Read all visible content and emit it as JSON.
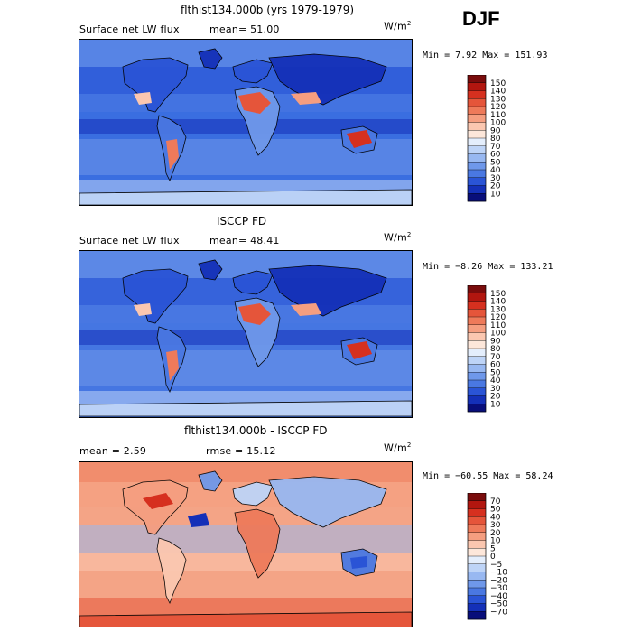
{
  "season": "DJF",
  "panels": [
    {
      "title": "flthist134.000b (yrs 1979-1979)",
      "left_label": "Surface net LW flux",
      "right_label": "mean=  51.00",
      "units": "W/m",
      "units_exp": "2",
      "minmax": "Min =    7.92 Max = 151.93",
      "ocean_color": "#3a6ee0",
      "cbar_labels": [
        "150",
        "140",
        "130",
        "120",
        "110",
        "100",
        "90",
        "80",
        "70",
        "60",
        "50",
        "40",
        "30",
        "20",
        "10"
      ],
      "cbar_colors": [
        "#7a0c0c",
        "#b2160f",
        "#d6301f",
        "#e5553a",
        "#ee7a5a",
        "#f59e80",
        "#fbc7b0",
        "#fde7da",
        "#e4eefc",
        "#bed4f7",
        "#98b8f1",
        "#6f98ea",
        "#4a78e2",
        "#2a54d6",
        "#1430b8",
        "#080e7a"
      ]
    },
    {
      "title": "ISCCP FD",
      "left_label": "Surface net LW flux",
      "right_label": "mean=  48.41",
      "units": "W/m",
      "units_exp": "2",
      "minmax": "Min =  −8.26 Max = 133.21",
      "ocean_color": "#4576e2",
      "cbar_labels": [
        "150",
        "140",
        "130",
        "120",
        "110",
        "100",
        "90",
        "80",
        "70",
        "60",
        "50",
        "40",
        "30",
        "20",
        "10"
      ],
      "cbar_colors": [
        "#7a0c0c",
        "#b2160f",
        "#d6301f",
        "#e5553a",
        "#ee7a5a",
        "#f59e80",
        "#fbc7b0",
        "#fde7da",
        "#e4eefc",
        "#bed4f7",
        "#98b8f1",
        "#6f98ea",
        "#4a78e2",
        "#2a54d6",
        "#1430b8",
        "#080e7a"
      ]
    },
    {
      "title": "flthist134.000b - ISCCP FD",
      "left_label": "mean =   2.59",
      "right_label": "rmse =  15.12",
      "units": "W/m",
      "units_exp": "2",
      "minmax": "Min = −60.55 Max =  58.24",
      "ocean_color": "#f4a486",
      "cbar_labels": [
        "70",
        "50",
        "40",
        "30",
        "20",
        "10",
        "5",
        "0",
        "−5",
        "−10",
        "−20",
        "−30",
        "−40",
        "−50",
        "−70"
      ],
      "cbar_colors": [
        "#7a0c0c",
        "#b2160f",
        "#d6301f",
        "#e5553a",
        "#ee7a5a",
        "#f59e80",
        "#fbc7b0",
        "#fde7da",
        "#e4eefc",
        "#bed4f7",
        "#98b8f1",
        "#6f98ea",
        "#4a78e2",
        "#2a54d6",
        "#1430b8",
        "#080e7a"
      ]
    }
  ],
  "chart_data": {
    "type": "heatmap",
    "title": "DJF",
    "maps": [
      {
        "title": "flthist134.000b (yrs 1979-1979)",
        "variable": "Surface net LW flux",
        "mean": 51.0,
        "min": 7.92,
        "max": 151.93,
        "units": "W/m2",
        "levels": [
          10,
          20,
          30,
          40,
          50,
          60,
          70,
          80,
          90,
          100,
          110,
          120,
          130,
          140,
          150
        ]
      },
      {
        "title": "ISCCP FD",
        "variable": "Surface net LW flux",
        "mean": 48.41,
        "min": -8.26,
        "max": 133.21,
        "units": "W/m2",
        "levels": [
          10,
          20,
          30,
          40,
          50,
          60,
          70,
          80,
          90,
          100,
          110,
          120,
          130,
          140,
          150
        ]
      },
      {
        "title": "flthist134.000b - ISCCP FD",
        "mean": 2.59,
        "rmse": 15.12,
        "min": -60.55,
        "max": 58.24,
        "units": "W/m2",
        "levels": [
          -70,
          -50,
          -40,
          -30,
          -20,
          -10,
          -5,
          0,
          5,
          10,
          20,
          30,
          40,
          50,
          70
        ]
      }
    ]
  }
}
